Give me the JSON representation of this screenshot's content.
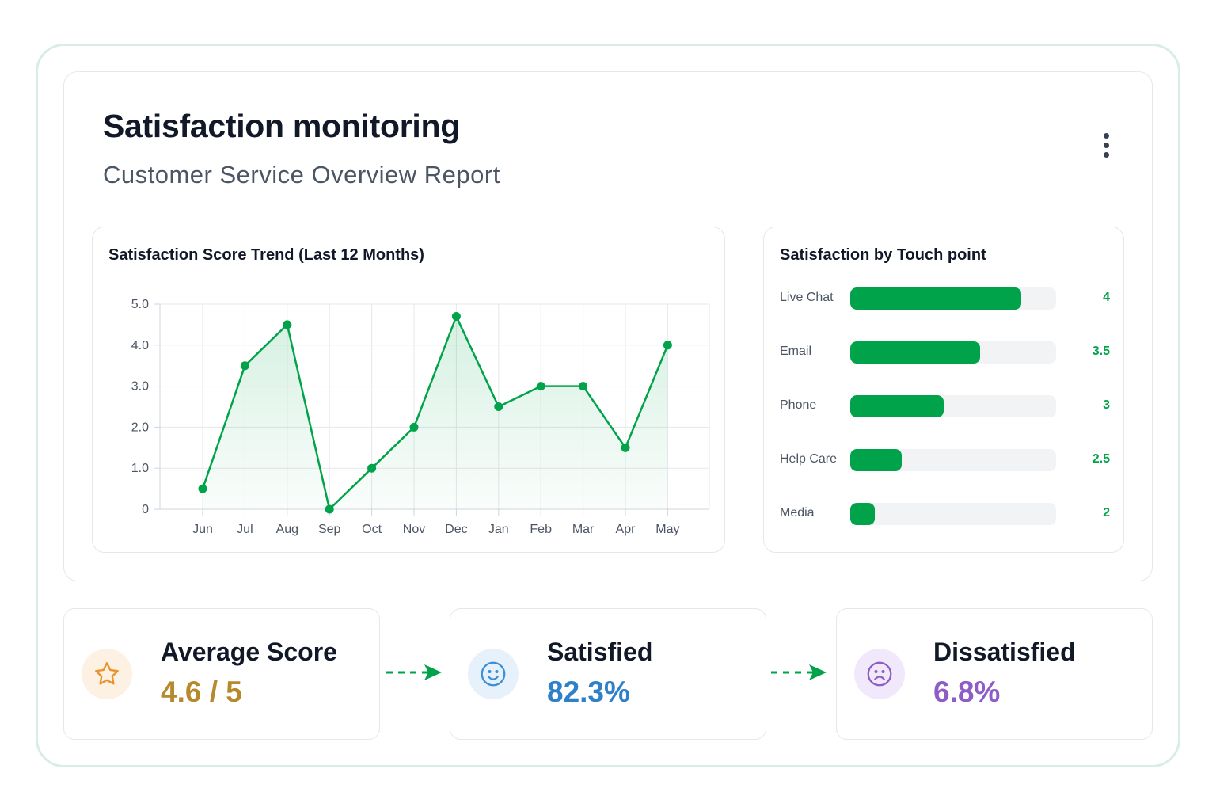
{
  "header": {
    "title": "Satisfaction monitoring",
    "subtitle": "Customer Service Overview Report",
    "menu_icon": "more-vertical-icon"
  },
  "trend_panel": {
    "title": "Satisfaction Score Trend (Last 12 Months)"
  },
  "touch_panel": {
    "title": "Satisfaction by Touch point"
  },
  "colors": {
    "accent": "#00a349",
    "average": "#b7892d",
    "satisfied": "#2f80c9",
    "dissatisfied": "#8e5cc7"
  },
  "chart_data": [
    {
      "type": "line",
      "title": "Satisfaction Score Trend (Last 12 Months)",
      "categories": [
        "Jun",
        "Jul",
        "Aug",
        "Sep",
        "Oct",
        "Nov",
        "Dec",
        "Jan",
        "Feb",
        "Mar",
        "Apr",
        "May"
      ],
      "values": [
        0.5,
        3.5,
        4.5,
        0,
        1.0,
        2.0,
        4.7,
        2.5,
        3.0,
        3.0,
        1.5,
        4.0
      ],
      "y_ticks": [
        "0",
        "1.0",
        "2.0",
        "3.0",
        "4.0",
        "5.0"
      ],
      "ylim": [
        0,
        5
      ],
      "grid": true,
      "area_fill": true
    },
    {
      "type": "bar",
      "orientation": "horizontal",
      "title": "Satisfaction by Touch point",
      "categories": [
        "Live Chat",
        "Email",
        "Phone",
        "Help Care",
        "Media"
      ],
      "values": [
        4,
        3.5,
        3,
        2.5,
        2
      ],
      "value_labels": [
        "4",
        "3.5",
        "3",
        "2.5",
        "2"
      ],
      "fill_fraction": [
        0.83,
        0.63,
        0.455,
        0.25,
        0.12
      ]
    }
  ],
  "kpis": [
    {
      "label": "Average Score",
      "value": "4.6 / 5",
      "icon": "star-icon"
    },
    {
      "label": "Satisfied",
      "value": "82.3%",
      "icon": "smile-icon"
    },
    {
      "label": "Dissatisfied",
      "value": "6.8%",
      "icon": "frown-icon"
    }
  ]
}
